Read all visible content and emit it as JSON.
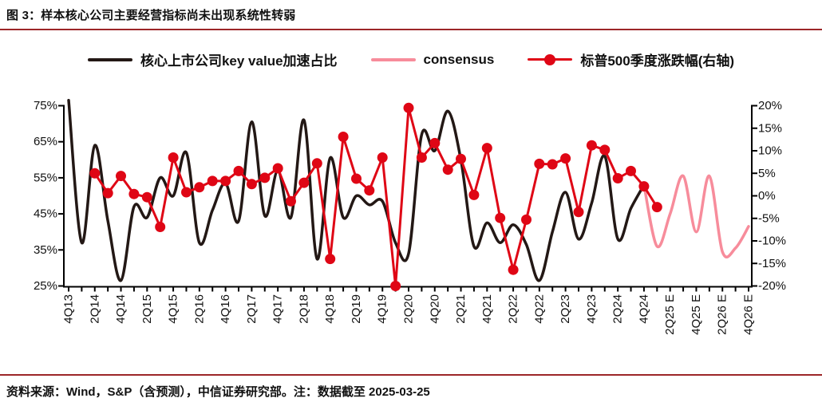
{
  "title": "图 3：样本核心公司主要经营指标尚未出现系统性转弱",
  "footer": {
    "source_note": "资料来源：Wind，S&P（含预测），中信证券研究部。注：数据截至 2025-03-25"
  },
  "colors": {
    "accent_rule": "#9C2628",
    "series_black": "#231815",
    "series_pink": "#F78C9B",
    "series_red": "#DF0615",
    "axis": "#000000",
    "text": "#111111"
  },
  "legend": {
    "items": [
      {
        "label": "核心上市公司key value加速占比",
        "color": "#231815",
        "marker": "line"
      },
      {
        "label": "consensus",
        "color": "#F78C9B",
        "marker": "line"
      },
      {
        "label": "标普500季度涨跌幅(右轴)",
        "color": "#DF0615",
        "marker": "line-dot"
      }
    ]
  },
  "chart_data": {
    "type": "line",
    "title": "",
    "x": [
      "4Q13",
      "1Q14",
      "2Q14",
      "3Q14",
      "4Q14",
      "1Q15",
      "2Q15",
      "3Q15",
      "4Q15",
      "1Q16",
      "2Q16",
      "3Q16",
      "4Q16",
      "1Q17",
      "2Q17",
      "3Q17",
      "4Q17",
      "1Q18",
      "2Q18",
      "3Q18",
      "4Q18",
      "1Q19",
      "2Q19",
      "3Q19",
      "4Q19",
      "1Q20",
      "2Q20",
      "3Q20",
      "4Q20",
      "1Q21",
      "2Q21",
      "3Q21",
      "4Q21",
      "1Q22",
      "2Q22",
      "3Q22",
      "4Q22",
      "1Q23",
      "2Q23",
      "3Q23",
      "4Q23",
      "1Q24",
      "2Q24",
      "3Q24",
      "4Q24",
      "1Q25",
      "2Q25",
      "3Q25",
      "4Q25",
      "1Q26",
      "2Q26",
      "3Q26",
      "4Q26"
    ],
    "x_visible_labels": [
      "4Q13",
      "2Q14",
      "4Q14",
      "2Q15",
      "4Q15",
      "2Q16",
      "4Q16",
      "2Q17",
      "4Q17",
      "2Q18",
      "4Q18",
      "2Q19",
      "4Q19",
      "2Q20",
      "4Q20",
      "2Q21",
      "4Q21",
      "2Q22",
      "4Q22",
      "2Q23",
      "4Q23",
      "2Q24",
      "4Q24",
      "2Q25 E",
      "4Q25 E",
      "2Q26 E",
      "4Q26 E"
    ],
    "left_axis": {
      "min": 25,
      "max": 75,
      "tick_labels": [
        "75%",
        "65%",
        "55%",
        "45%",
        "35%",
        "25%"
      ],
      "tick_values": [
        75,
        65,
        55,
        45,
        35,
        25
      ]
    },
    "right_axis": {
      "min": -20,
      "max": 20,
      "tick_labels": [
        "20%",
        "15%",
        "10%",
        "5%",
        "0%",
        "-5%",
        "-10%",
        "-15%",
        "-20%"
      ],
      "tick_values": [
        20,
        15,
        10,
        5,
        0,
        -5,
        -10,
        -15,
        -20
      ]
    },
    "grid": false,
    "legend_position": "top",
    "series": [
      {
        "name": "核心上市公司key value加速占比",
        "axis": "left",
        "color": "#231815",
        "style": "smooth",
        "width": 3.5,
        "x_start_index": 0,
        "values": [
          76.5,
          37,
          64,
          43,
          26.5,
          47,
          44,
          55,
          50,
          62,
          37,
          46,
          53.5,
          43,
          70.5,
          44.5,
          57,
          44,
          71,
          32.5,
          60.5,
          44,
          50,
          47.5,
          48.5,
          37,
          34,
          67,
          62.5,
          73.5,
          60,
          36,
          42.5,
          37,
          42,
          36.5,
          26.5,
          40,
          51,
          38,
          48,
          61,
          38,
          46.5,
          53
        ]
      },
      {
        "name": "consensus",
        "axis": "left",
        "color": "#F78C9B",
        "style": "smooth",
        "width": 3.5,
        "x_start_index": 44,
        "values": [
          53,
          36,
          45,
          55.5,
          40,
          55.5,
          34.5,
          35.5,
          41.5
        ]
      },
      {
        "name": "标普500季度涨跌幅(右轴)",
        "axis": "right",
        "color": "#DF0615",
        "style": "straight",
        "width": 3,
        "marker_radius": 6.5,
        "x_start_index": 2,
        "values": [
          5,
          0.6,
          4.4,
          0.4,
          -0.3,
          -6.9,
          8.5,
          0.8,
          1.9,
          3.3,
          3.3,
          5.5,
          2.6,
          4,
          6.1,
          -1.2,
          2.9,
          7.2,
          -14,
          13.1,
          3.8,
          1.2,
          8.5,
          -20,
          19.5,
          8.5,
          11.7,
          5.8,
          8.2,
          0.2,
          10.6,
          -4.9,
          -16.4,
          -5.3,
          7.1,
          7,
          8.3,
          -3.6,
          11.2,
          10.2,
          3.9,
          5.5,
          2.1,
          -2.5
        ]
      }
    ]
  }
}
